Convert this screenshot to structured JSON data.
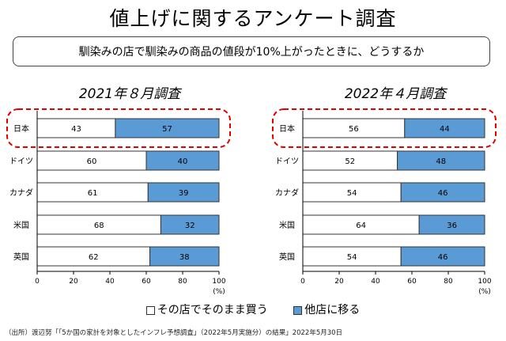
{
  "title": "値上げに関するアンケート調査",
  "question": "馴染みの店で馴染みの商品の値段が10%上がったときに、どうするか",
  "source": "（出所）渡辺努「「5か国の家計を対象としたインフレ予想調査」（2022年5月実施分）の結果」2022年5月30日",
  "colors": {
    "same_store": "#ffffff",
    "other_store": "#5b9bd5",
    "highlight": "#e00000",
    "border": "#333333"
  },
  "chart_data": [
    {
      "type": "bar",
      "orientation": "horizontal",
      "stacked": true,
      "title": "2021年８月調査",
      "categories": [
        "日本",
        "ドイツ",
        "カナダ",
        "米国",
        "英国"
      ],
      "series": [
        {
          "name": "その店でそのまま買う",
          "values": [
            43,
            60,
            61,
            68,
            62
          ]
        },
        {
          "name": "他店に移る",
          "values": [
            57,
            40,
            39,
            32,
            38
          ]
        }
      ],
      "xlim": [
        0,
        100
      ],
      "ticks": [
        "0",
        "20",
        "40",
        "60",
        "80",
        "100"
      ],
      "xlabel": "(%)",
      "highlighted_category": "日本"
    },
    {
      "type": "bar",
      "orientation": "horizontal",
      "stacked": true,
      "title": "2022年４月調査",
      "categories": [
        "日本",
        "ドイツ",
        "カナダ",
        "米国",
        "英国"
      ],
      "series": [
        {
          "name": "その店でそのまま買う",
          "values": [
            56,
            52,
            54,
            64,
            54
          ]
        },
        {
          "name": "他店に移る",
          "values": [
            44,
            48,
            46,
            36,
            46
          ]
        }
      ],
      "xlim": [
        0,
        100
      ],
      "ticks": [
        "0",
        "20",
        "40",
        "60",
        "80",
        "100"
      ],
      "xlabel": "(%)",
      "highlighted_category": "日本"
    }
  ],
  "legend": [
    {
      "label": "その店でそのまま買う",
      "color": "#ffffff"
    },
    {
      "label": "他店に移る",
      "color": "#5b9bd5"
    }
  ]
}
